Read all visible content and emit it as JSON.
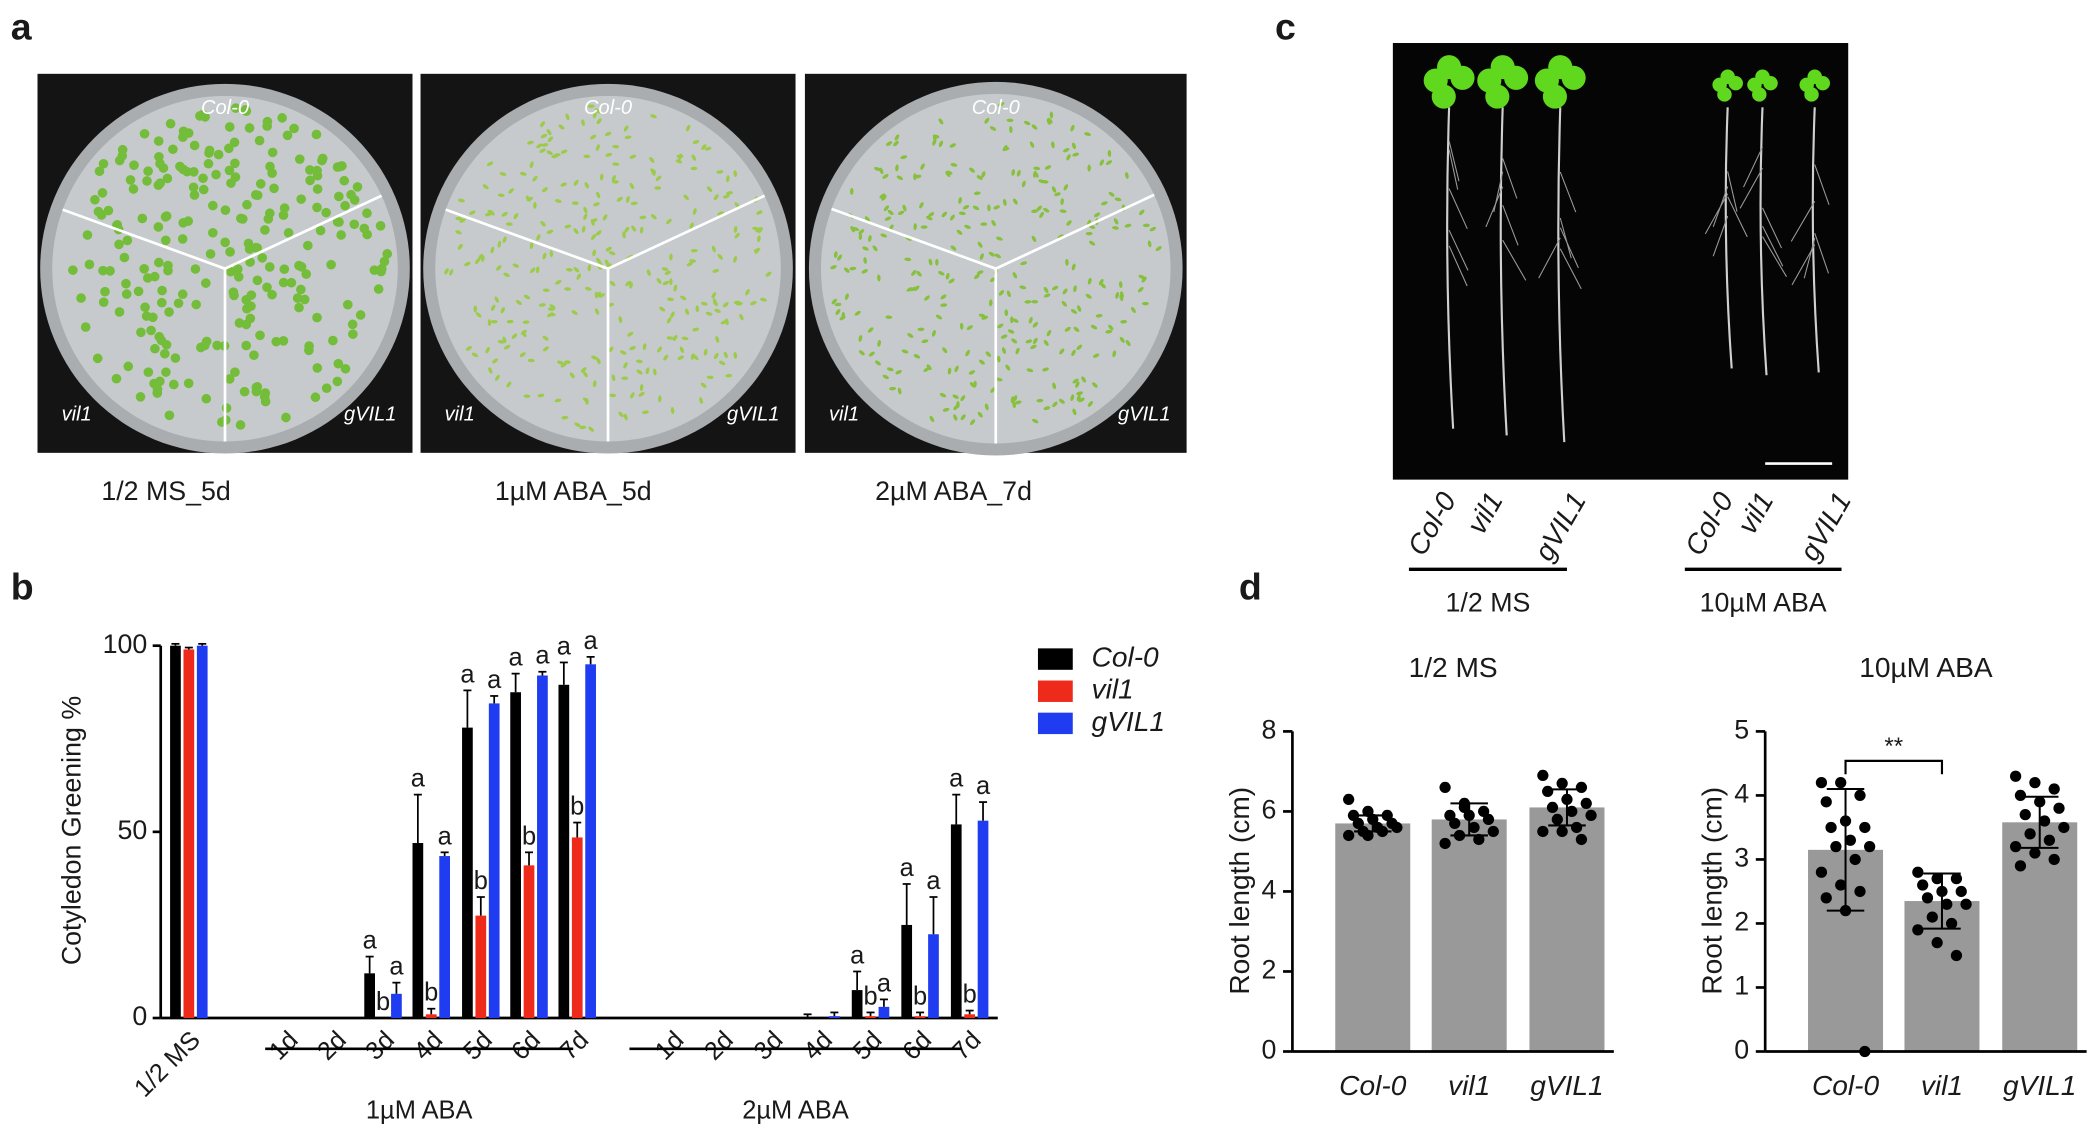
{
  "panel_labels": [
    "a",
    "b",
    "c",
    "d"
  ],
  "panel_a": {
    "plates": [
      {
        "caption": "1/2 MS_5d",
        "labels": [
          "Col-0",
          "vil1",
          "gVIL1"
        ]
      },
      {
        "caption": "1µM ABA_5d",
        "labels": [
          "Col-0",
          "vil1",
          "gVIL1"
        ]
      },
      {
        "caption": "2µM ABA_7d",
        "labels": [
          "Col-0",
          "vil1",
          "gVIL1"
        ]
      }
    ]
  },
  "panel_c": {
    "labels": [
      "Col-0",
      "vil1",
      "gVIL1",
      "Col-0",
      "vil1",
      "gVIL1"
    ],
    "groups": [
      "1/2 MS",
      "10µM ABA"
    ]
  },
  "chart_data": [
    {
      "type": "bar",
      "y_label": "Cotyledon Greening %",
      "categories": [
        "1/2 MS",
        "1d",
        "2d",
        "3d",
        "4d",
        "5d",
        "6d",
        "7d",
        "1d",
        "2d",
        "3d",
        "4d",
        "5d",
        "6d",
        "7d"
      ],
      "groups": [
        "1µM ABA",
        "2µM ABA"
      ],
      "ylim": [
        0,
        100
      ],
      "yticks": [
        0,
        50,
        100
      ],
      "legend": "right",
      "series": [
        {
          "name": "Col-0",
          "color": "#000000",
          "values": [
            100,
            0,
            0,
            12,
            47,
            78,
            87.5,
            89.5,
            0,
            0,
            0,
            0,
            7.5,
            25,
            52
          ],
          "errors": [
            0.5,
            0,
            0,
            4.5,
            13,
            10,
            5,
            6,
            0,
            0,
            0,
            1,
            5,
            11,
            8
          ],
          "letters": [
            null,
            null,
            null,
            "a",
            "a",
            "a",
            "a",
            "a",
            null,
            null,
            null,
            null,
            "a",
            "a",
            "a"
          ]
        },
        {
          "name": "vil1",
          "color": "#ee2b1b",
          "values": [
            99,
            0,
            0,
            0,
            1,
            27.5,
            41,
            48.5,
            0,
            0,
            0,
            0,
            0.5,
            0.5,
            1
          ],
          "errors": [
            0.5,
            0,
            0,
            0,
            1.5,
            5,
            3.5,
            4,
            0,
            0,
            0,
            0,
            1,
            1,
            1
          ],
          "letters": [
            null,
            null,
            null,
            "b",
            "b",
            "b",
            "b",
            "b",
            null,
            null,
            null,
            null,
            "b",
            "b",
            "b"
          ]
        },
        {
          "name": "gVIL1",
          "color": "#1f3cf0",
          "values": [
            100,
            0,
            0,
            6.5,
            43.5,
            84.5,
            92,
            95,
            0,
            0,
            0,
            0.5,
            3,
            22.5,
            53
          ],
          "errors": [
            0.5,
            0,
            0,
            3,
            1,
            2,
            1,
            2,
            0,
            0,
            0,
            1,
            2,
            10,
            5
          ],
          "letters": [
            null,
            null,
            null,
            "a",
            "a",
            "a",
            "a",
            "a",
            null,
            null,
            null,
            null,
            "a",
            "a",
            "a"
          ]
        }
      ]
    },
    {
      "type": "dotbar",
      "title": "1/2 MS",
      "y_label": "Root length (cm)",
      "categories": [
        "Col-0",
        "vil1",
        "gVIL1"
      ],
      "color": "#999999",
      "values": [
        5.7,
        5.8,
        6.1
      ],
      "errors": [
        0.2,
        0.4,
        0.45
      ],
      "points": [
        [
          6.3,
          6.0,
          5.9,
          5.9,
          5.8,
          5.7,
          5.7,
          5.6,
          5.6,
          5.5,
          5.5,
          5.4,
          5.4
        ],
        [
          6.6,
          6.1,
          6.0,
          5.9,
          5.9,
          5.8,
          5.7,
          5.6,
          5.5,
          5.4,
          5.3,
          5.2,
          6.2
        ],
        [
          6.9,
          6.7,
          6.6,
          6.5,
          6.3,
          6.2,
          6.1,
          6.0,
          5.9,
          5.8,
          5.6,
          5.5,
          5.5,
          5.3
        ]
      ],
      "ylim": [
        0,
        8
      ],
      "yticks": [
        0,
        2,
        4,
        6,
        8
      ]
    },
    {
      "type": "dotbar",
      "title": "10µM ABA",
      "y_label": "Root length (cm)",
      "categories": [
        "Col-0",
        "vil1",
        "gVIL1"
      ],
      "color": "#999999",
      "values": [
        3.15,
        2.35,
        3.58
      ],
      "errors": [
        0.95,
        0.43,
        0.4
      ],
      "points": [
        [
          4.2,
          4.2,
          4.0,
          3.9,
          3.6,
          3.5,
          3.5,
          3.3,
          3.2,
          3.2,
          3.0,
          2.8,
          2.6,
          2.5,
          2.4,
          2.2,
          0
        ],
        [
          2.8,
          2.7,
          2.7,
          2.6,
          2.5,
          2.5,
          2.4,
          2.3,
          2.3,
          2.1,
          2.0,
          1.9,
          1.7,
          1.5
        ],
        [
          4.3,
          4.2,
          4.1,
          4.0,
          3.9,
          3.8,
          3.7,
          3.6,
          3.5,
          3.4,
          3.3,
          3.2,
          3.1,
          3.0,
          2.9
        ]
      ],
      "ylim": [
        0,
        5
      ],
      "yticks": [
        0,
        1,
        2,
        3,
        4,
        5
      ],
      "annotation": "**"
    }
  ]
}
